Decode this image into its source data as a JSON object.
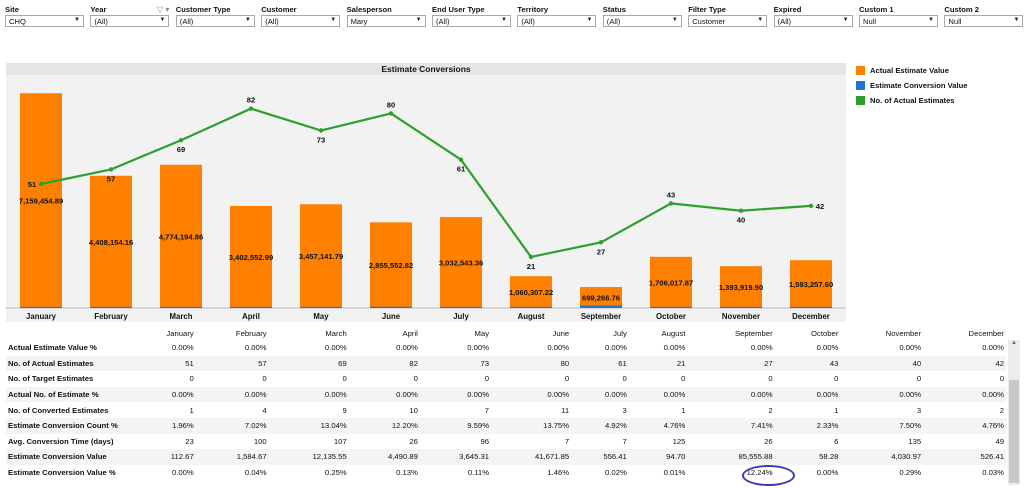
{
  "filters": [
    {
      "label": "Site",
      "value": "CHQ",
      "funnel": false
    },
    {
      "label": "Year",
      "value": "(All)",
      "funnel": true
    },
    {
      "label": "Customer Type",
      "value": "(All)",
      "funnel": false
    },
    {
      "label": "Customer",
      "value": "(All)",
      "funnel": false
    },
    {
      "label": "Salesperson",
      "value": "Mary",
      "funnel": false
    },
    {
      "label": "End User Type",
      "value": "(All)",
      "funnel": false
    },
    {
      "label": "Territory",
      "value": "(All)",
      "funnel": false
    },
    {
      "label": "Status",
      "value": "(All)",
      "funnel": false
    },
    {
      "label": "Filter Type",
      "value": "Customer",
      "funnel": false
    },
    {
      "label": "Expired",
      "value": "(All)",
      "funnel": false
    },
    {
      "label": "Custom 1",
      "value": "Null",
      "funnel": false
    },
    {
      "label": "Custom 2",
      "value": "Null",
      "funnel": false
    }
  ],
  "chart_data": {
    "type": "bar",
    "title": "Estimate Conversions",
    "categories": [
      "January",
      "February",
      "March",
      "April",
      "May",
      "June",
      "July",
      "August",
      "September",
      "October",
      "November",
      "December"
    ],
    "series": [
      {
        "name": "Actual Estimate Value",
        "color": "#ff8000",
        "values": [
          7159454.89,
          4408154.16,
          4774194.86,
          3402552.99,
          3457141.79,
          2855552.82,
          3032543.36,
          1060307.22,
          699266.76,
          1706017.87,
          1393919.9,
          1593257.6
        ],
        "labels": [
          "7,159,454.89",
          "4,408,154.16",
          "4,774,194.86",
          "3,402,552.99",
          "3,457,141.79",
          "2,855,552.82",
          "3,032,543.36",
          "1,060,307.22",
          "699,266.76",
          "1,706,017.87",
          "1,393,919.90",
          "1,593,257.60"
        ]
      },
      {
        "name": "Estimate Conversion Value",
        "color": "#1f77d4",
        "values": [
          112.67,
          1584.67,
          12135.55,
          4490.89,
          3645.31,
          41671.85,
          556.41,
          94.7,
          85555.88,
          58.28,
          4030.97,
          526.41
        ]
      },
      {
        "name": "No. of Actual Estimates",
        "color": "#2ca02c",
        "type": "line",
        "values": [
          51,
          57,
          69,
          82,
          73,
          80,
          61,
          21,
          27,
          43,
          40,
          42
        ]
      }
    ],
    "ylim": [
      0,
      7700000
    ],
    "line_ylim": [
      0,
      95
    ]
  },
  "legend": [
    {
      "label": "Actual Estimate Value",
      "color": "#ff8000"
    },
    {
      "label": "Estimate Conversion Value",
      "color": "#1f77d4"
    },
    {
      "label": "No. of Actual Estimates",
      "color": "#2ca02c"
    }
  ],
  "table": {
    "columns": [
      "January",
      "February",
      "March",
      "April",
      "May",
      "June",
      "July",
      "August",
      "September",
      "October",
      "November",
      "December"
    ],
    "rows": [
      {
        "label": "Actual Estimate Value %",
        "values": [
          "0.00%",
          "0.00%",
          "0.00%",
          "0.00%",
          "0.00%",
          "0.00%",
          "0.00%",
          "0.00%",
          "0.00%",
          "0.00%",
          "0.00%",
          "0.00%"
        ]
      },
      {
        "label": "No. of Actual Estimates",
        "values": [
          "51",
          "57",
          "69",
          "82",
          "73",
          "80",
          "61",
          "21",
          "27",
          "43",
          "40",
          "42"
        ]
      },
      {
        "label": "No. of Target Estimates",
        "values": [
          "0",
          "0",
          "0",
          "0",
          "0",
          "0",
          "0",
          "0",
          "0",
          "0",
          "0",
          "0"
        ]
      },
      {
        "label": "Actual No. of Estimate %",
        "values": [
          "0.00%",
          "0.00%",
          "0.00%",
          "0.00%",
          "0.00%",
          "0.00%",
          "0.00%",
          "0.00%",
          "0.00%",
          "0.00%",
          "0.00%",
          "0.00%"
        ]
      },
      {
        "label": "No. of Converted Estimates",
        "values": [
          "1",
          "4",
          "9",
          "10",
          "7",
          "11",
          "3",
          "1",
          "2",
          "1",
          "3",
          "2"
        ]
      },
      {
        "label": "Estimate Conversion Count %",
        "values": [
          "1.96%",
          "7.02%",
          "13.04%",
          "12.20%",
          "9.59%",
          "13.75%",
          "4.92%",
          "4.76%",
          "7.41%",
          "2.33%",
          "7.50%",
          "4.76%"
        ]
      },
      {
        "label": "Avg. Conversion Time (days)",
        "values": [
          "23",
          "100",
          "107",
          "26",
          "96",
          "7",
          "7",
          "125",
          "26",
          "6",
          "135",
          "49"
        ]
      },
      {
        "label": "Estimate Conversion Value",
        "values": [
          "112.67",
          "1,584.67",
          "12,135.55",
          "4,490.89",
          "3,645.31",
          "41,671.85",
          "556.41",
          "94.70",
          "85,555.88",
          "58.28",
          "4,030.97",
          "526.41"
        ]
      },
      {
        "label": "Estimate Conversion Value %",
        "values": [
          "0.00%",
          "0.04%",
          "0.25%",
          "0.13%",
          "0.11%",
          "1.46%",
          "0.02%",
          "0.01%",
          "12.24%",
          "0.00%",
          "0.29%",
          "0.03%"
        ]
      }
    ]
  },
  "colors": {
    "accent_ring": "#3a3ab8",
    "bar": "#ff8000",
    "line": "#2ca02c",
    "conversion": "#1f77d4"
  }
}
